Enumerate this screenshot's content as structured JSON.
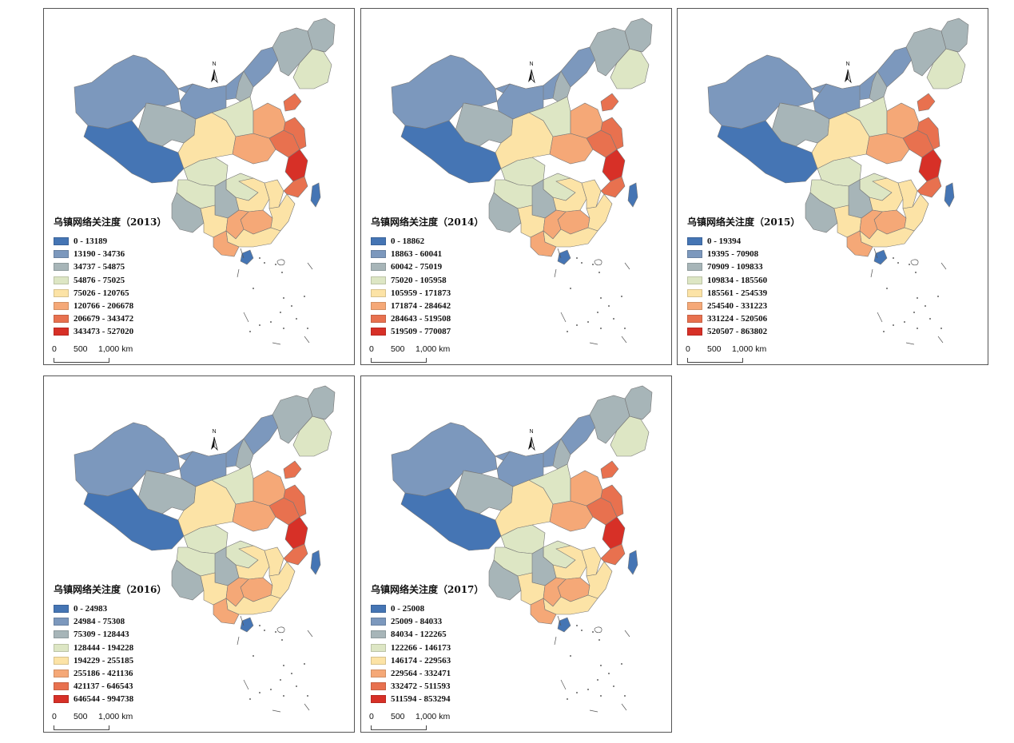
{
  "north_label": "N",
  "scale": {
    "zero": "0",
    "mid": "500",
    "max": "1,000 km"
  },
  "palette": [
    "#4575b4",
    "#7c98bd",
    "#a7b5b8",
    "#dde6c4",
    "#fce3a6",
    "#f5a877",
    "#e8714f",
    "#d73027"
  ],
  "panels": [
    {
      "title": "乌镇网络关注度（2013）",
      "ranges": [
        "0 - 13189",
        "13190 - 34736",
        "34737 - 54875",
        "54876 - 75025",
        "75026 - 120765",
        "120766 - 206678",
        "206679 - 343472",
        "343473 - 527020"
      ]
    },
    {
      "title": "乌镇网络关注度（2014）",
      "ranges": [
        "0 - 18862",
        "18863 - 60041",
        "60042 - 75019",
        "75020 - 105958",
        "105959 - 171873",
        "171874 - 284642",
        "284643 - 519508",
        "519509 - 770087"
      ]
    },
    {
      "title": "乌镇网络关注度（2015）",
      "ranges": [
        "0 - 19394",
        "19395 - 70908",
        "70909 - 109833",
        "109834 - 185560",
        "185561 - 254539",
        "254540 - 331223",
        "331224 - 520506",
        "520507 - 863802"
      ]
    },
    {
      "title": "乌镇网络关注度（2016）",
      "ranges": [
        "0 - 24983",
        "24984 - 75308",
        "75309 - 128443",
        "128444 - 194228",
        "194229 - 255185",
        "255186 - 421136",
        "421137 - 646543",
        "646544 - 994738"
      ]
    },
    {
      "title": "乌镇网络关注度（2017）",
      "ranges": [
        "0 - 25008",
        "25009 - 84033",
        "84034 - 122265",
        "122266 - 146173",
        "146174 - 229563",
        "229564 - 332471",
        "332472 - 511593",
        "511594 - 853294"
      ]
    }
  ]
}
